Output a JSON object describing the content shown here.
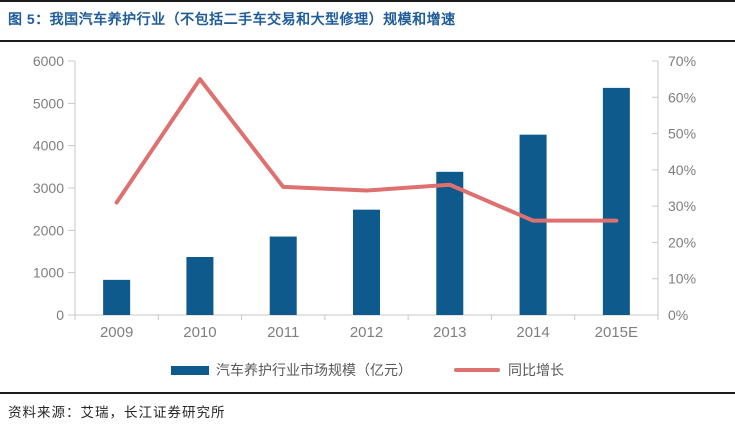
{
  "header": {
    "title": "图 5：我国汽车养护行业（不包括二手车交易和大型修理）规模和增速"
  },
  "chart_data": {
    "type": "bar+line",
    "title": "图 5：我国汽车养护行业（不包括二手车交易和大型修理）规模和增速",
    "categories": [
      "2009",
      "2010",
      "2011",
      "2012",
      "2013",
      "2014",
      "2015E"
    ],
    "series": [
      {
        "name": "汽车养护行业市场规模（亿元）",
        "type": "bar",
        "axis": "left",
        "color": "#0F5A8C",
        "values": [
          830,
          1370,
          1853,
          2488,
          3382,
          4260,
          5365
        ]
      },
      {
        "name": "同比增长",
        "type": "line",
        "axis": "right",
        "color": "#DE7070",
        "unit": "%",
        "values": [
          31,
          65,
          35.3,
          34.3,
          35.9,
          26,
          26
        ]
      }
    ],
    "left_axis": {
      "min": 0,
      "max": 6000,
      "ticks": [
        "0",
        "1000",
        "2000",
        "3000",
        "4000",
        "5000",
        "6000"
      ]
    },
    "right_axis": {
      "min": 0,
      "max": 70,
      "ticks": [
        "0%",
        "10%",
        "20%",
        "30%",
        "40%",
        "50%",
        "60%",
        "70%"
      ]
    },
    "legend_position": "bottom",
    "grid": false
  },
  "footer": {
    "source": "资料来源：艾瑞，长江证券研究所"
  },
  "colors": {
    "title_text": "#1F5C99",
    "divider": "#1A1A1A",
    "axis_line": "#C8C8C8",
    "axis_text": "#7F7F7F",
    "legend_text": "#595959",
    "source_text": "#262626",
    "background": "#FFFFFF"
  }
}
